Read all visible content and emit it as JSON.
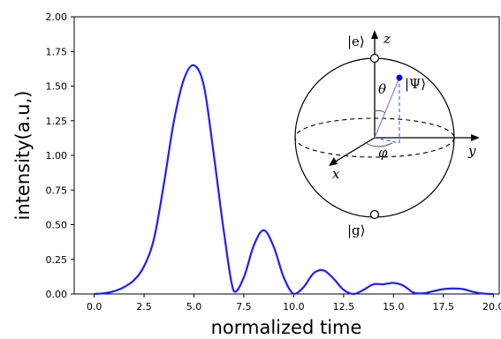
{
  "chart_data": {
    "type": "line",
    "xlabel": "normalized time",
    "ylabel": "intensity(a.u,)",
    "xlim": [
      -1,
      20.3
    ],
    "ylim": [
      0,
      2.0
    ],
    "x_ticks": [
      "0.0",
      "2.5",
      "5.0",
      "7.5",
      "10.0",
      "12.5",
      "15.0",
      "17.5",
      "20.0"
    ],
    "y_ticks": [
      "0.00",
      "0.25",
      "0.50",
      "0.75",
      "1.00",
      "1.25",
      "1.50",
      "1.75",
      "2.00"
    ],
    "line_color": "#1f1fff",
    "series": [
      {
        "x": [
          0.0,
          0.5,
          1.0,
          1.5,
          2.0,
          2.5,
          3.0,
          3.5,
          4.0,
          4.5,
          5.0,
          5.5,
          6.0,
          6.5,
          7.0,
          7.5,
          8.0,
          8.5,
          9.0,
          9.5,
          10.0,
          10.5,
          11.0,
          11.5,
          12.0,
          12.5,
          13.0,
          13.5,
          14.0,
          14.5,
          15.0,
          15.5,
          16.0,
          16.5,
          17.0,
          17.5,
          18.0,
          18.5,
          19.0,
          19.5,
          20.0
        ],
        "y": [
          0.0,
          0.005,
          0.02,
          0.05,
          0.1,
          0.2,
          0.4,
          0.8,
          1.25,
          1.55,
          1.65,
          1.5,
          1.0,
          0.45,
          0.02,
          0.12,
          0.35,
          0.46,
          0.34,
          0.12,
          0.0,
          0.05,
          0.15,
          0.17,
          0.11,
          0.03,
          0.0,
          0.03,
          0.07,
          0.07,
          0.08,
          0.06,
          0.01,
          0.005,
          0.02,
          0.035,
          0.04,
          0.035,
          0.015,
          0.003,
          0.0
        ]
      }
    ]
  },
  "inset": {
    "z_axis_label": "z",
    "y_axis_label": "y",
    "x_axis_label": "x",
    "excited_state": "|e⟩",
    "ground_state": "|g⟩",
    "state_label": "|Ψ⟩",
    "theta_label": "θ",
    "phi_label": "φ",
    "state_color": "#0000ff"
  }
}
